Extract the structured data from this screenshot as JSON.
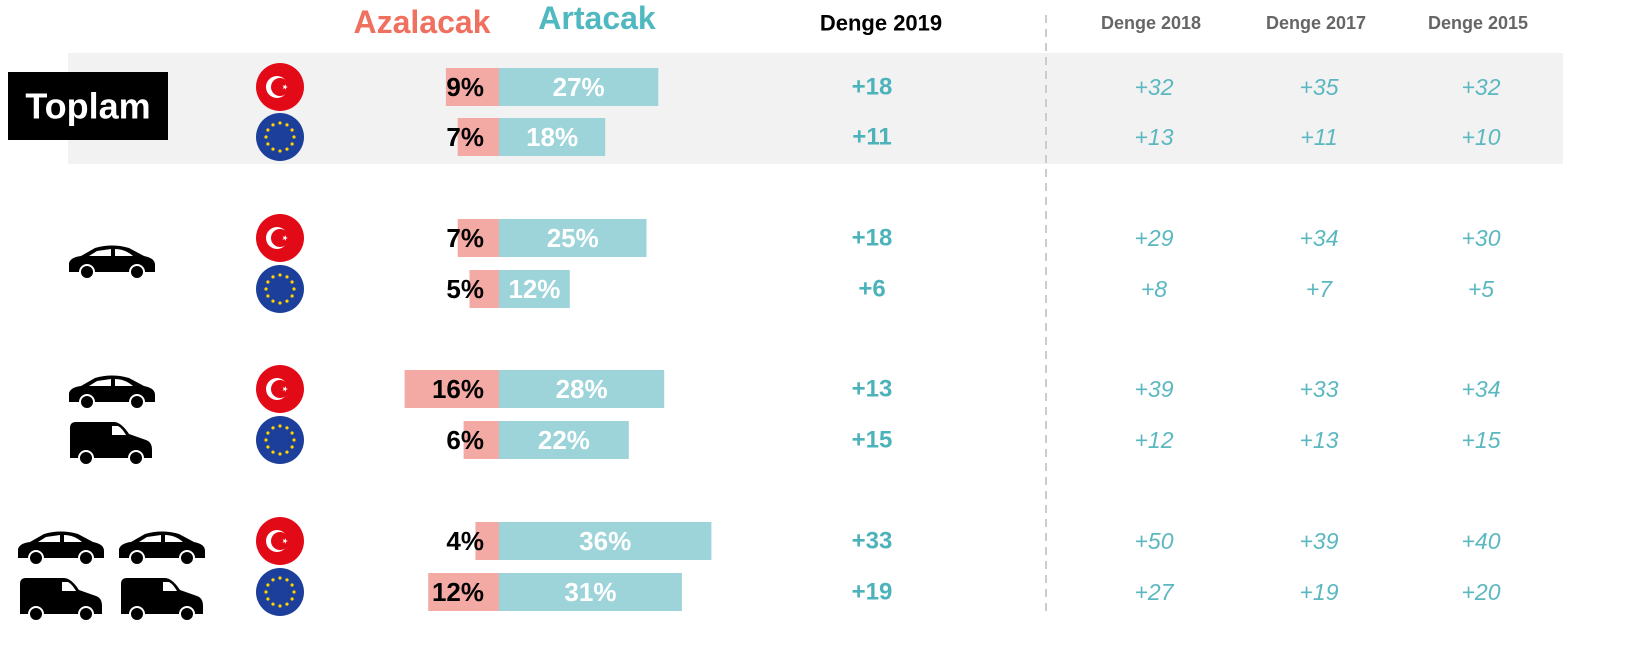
{
  "chart_data": {
    "type": "diverging_bar",
    "group_label": "Toplam",
    "series": [
      {
        "name": "Azalacak",
        "color": "#f4aaa4",
        "values": [
          9,
          7,
          7,
          5,
          16,
          6,
          4,
          12
        ],
        "value_labels": [
          "9%",
          "7%",
          "7%",
          "5%",
          "16%",
          "6%",
          "4%",
          "12%"
        ]
      },
      {
        "name": "Artacak",
        "color": "#9dd4da",
        "values": [
          27,
          18,
          25,
          12,
          28,
          22,
          36,
          31
        ],
        "value_labels": [
          "27%",
          "18%",
          "25%",
          "12%",
          "28%",
          "22%",
          "36%",
          "31%"
        ]
      }
    ],
    "columns": [
      {
        "name": "Denge 2019",
        "values": [
          18,
          11,
          18,
          6,
          13,
          15,
          33,
          19
        ],
        "value_labels": [
          "+18",
          "+11",
          "+18",
          "+6",
          "+13",
          "+15",
          "+33",
          "+19"
        ]
      },
      {
        "name": "Denge 2018",
        "values": [
          32,
          13,
          29,
          8,
          39,
          12,
          50,
          27
        ],
        "value_labels": [
          "+32",
          "+13",
          "+29",
          "+8",
          "+39",
          "+12",
          "+50",
          "+27"
        ]
      },
      {
        "name": "Denge 2017",
        "values": [
          35,
          11,
          34,
          7,
          33,
          13,
          39,
          19
        ],
        "value_labels": [
          "+35",
          "+11",
          "+34",
          "+7",
          "+33",
          "+13",
          "+39",
          "+19"
        ]
      },
      {
        "name": "Denge 2015",
        "values": [
          32,
          10,
          30,
          5,
          34,
          15,
          40,
          20
        ],
        "value_labels": [
          "+32",
          "+10",
          "+30",
          "+5",
          "+34",
          "+15",
          "+40",
          "+20"
        ]
      }
    ]
  }
}
